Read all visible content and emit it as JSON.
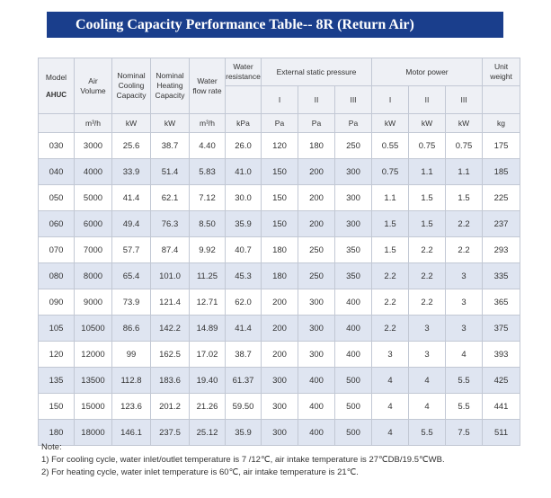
{
  "title": "Cooling Capacity Performance Table-- 8R (Return Air)",
  "headers": {
    "model": "Model",
    "model_sub": "AHUC",
    "air_volume": "Air Volume",
    "nominal_cooling": "Nominal Cooling Capacity",
    "nominal_heating": "Nominal Heating Capacity",
    "water_flow": "Water flow rate",
    "water_resistance": "Water resistance",
    "esp": "External static pressure",
    "motor_power": "Motor power",
    "unit_weight": "Unit weight",
    "speed_1": "I",
    "speed_2": "II",
    "speed_3": "III",
    "units": {
      "air_volume": "m³/h",
      "cooling": "kW",
      "heating": "kW",
      "water_flow": "m³/h",
      "water_resistance": "kPa",
      "esp_1": "Pa",
      "esp_2": "Pa",
      "esp_3": "Pa",
      "motor_1": "kW",
      "motor_2": "kW",
      "motor_3": "kW",
      "weight": "kg"
    }
  },
  "rows": [
    [
      "030",
      "3000",
      "25.6",
      "38.7",
      "4.40",
      "26.0",
      "120",
      "180",
      "250",
      "0.55",
      "0.75",
      "0.75",
      "175"
    ],
    [
      "040",
      "4000",
      "33.9",
      "51.4",
      "5.83",
      "41.0",
      "150",
      "200",
      "300",
      "0.75",
      "1.1",
      "1.1",
      "185"
    ],
    [
      "050",
      "5000",
      "41.4",
      "62.1",
      "7.12",
      "30.0",
      "150",
      "200",
      "300",
      "1.1",
      "1.5",
      "1.5",
      "225"
    ],
    [
      "060",
      "6000",
      "49.4",
      "76.3",
      "8.50",
      "35.9",
      "150",
      "200",
      "300",
      "1.5",
      "1.5",
      "2.2",
      "237"
    ],
    [
      "070",
      "7000",
      "57.7",
      "87.4",
      "9.92",
      "40.7",
      "180",
      "250",
      "350",
      "1.5",
      "2.2",
      "2.2",
      "293"
    ],
    [
      "080",
      "8000",
      "65.4",
      "101.0",
      "11.25",
      "45.3",
      "180",
      "250",
      "350",
      "2.2",
      "2.2",
      "3",
      "335"
    ],
    [
      "090",
      "9000",
      "73.9",
      "121.4",
      "12.71",
      "62.0",
      "200",
      "300",
      "400",
      "2.2",
      "2.2",
      "3",
      "365"
    ],
    [
      "105",
      "10500",
      "86.6",
      "142.2",
      "14.89",
      "41.4",
      "200",
      "300",
      "400",
      "2.2",
      "3",
      "3",
      "375"
    ],
    [
      "120",
      "12000",
      "99",
      "162.5",
      "17.02",
      "38.7",
      "200",
      "300",
      "400",
      "3",
      "3",
      "4",
      "393"
    ],
    [
      "135",
      "13500",
      "112.8",
      "183.6",
      "19.40",
      "61.37",
      "300",
      "400",
      "500",
      "4",
      "4",
      "5.5",
      "425"
    ],
    [
      "150",
      "15000",
      "123.6",
      "201.2",
      "21.26",
      "59.50",
      "300",
      "400",
      "500",
      "4",
      "4",
      "5.5",
      "441"
    ],
    [
      "180",
      "18000",
      "146.1",
      "237.5",
      "25.12",
      "35.9",
      "300",
      "400",
      "500",
      "4",
      "5.5",
      "7.5",
      "511"
    ]
  ],
  "notes": {
    "heading": "Note:",
    "line1": "1) For cooling cycle, water inlet/outlet temperature is 7 /12℃, air intake temperature is 27℃DB/19.5℃WB.",
    "line2": "2) For heating cycle, water inlet temperature is 60℃, air intake temperature is 21℃."
  }
}
